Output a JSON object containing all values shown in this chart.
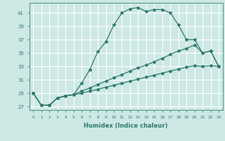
{
  "xlabel": "Humidex (Indice chaleur)",
  "x_ticks": [
    0,
    1,
    2,
    3,
    4,
    5,
    6,
    7,
    8,
    9,
    10,
    11,
    12,
    13,
    14,
    15,
    16,
    17,
    18,
    19,
    20,
    21,
    22,
    23
  ],
  "y_ticks": [
    27,
    29,
    31,
    33,
    35,
    37,
    39,
    41
  ],
  "xlim": [
    -0.5,
    23.5
  ],
  "ylim": [
    26.5,
    42.5
  ],
  "background_color": "#cde8e5",
  "grid_color": "#ffffff",
  "line_color": "#2e7b6e",
  "lines": [
    {
      "x": [
        0,
        1,
        2,
        3,
        4,
        5,
        6,
        7,
        8,
        9,
        10,
        11,
        12,
        13,
        14,
        15,
        16,
        17,
        18,
        19,
        20,
        21,
        22,
        23
      ],
      "y": [
        29.0,
        27.2,
        27.2,
        28.3,
        28.6,
        28.8,
        30.5,
        32.5,
        35.2,
        36.7,
        39.2,
        41.0,
        41.6,
        41.8,
        41.2,
        41.5,
        41.5,
        41.0,
        39.2,
        37.0,
        37.0,
        35.0,
        35.3,
        33.0
      ]
    },
    {
      "x": [
        0,
        1,
        2,
        3,
        4,
        5,
        6,
        7,
        8,
        9,
        10,
        11,
        12,
        13,
        14,
        15,
        16,
        17,
        18,
        19,
        20,
        21,
        22,
        23
      ],
      "y": [
        29.0,
        27.2,
        27.2,
        28.3,
        28.6,
        28.8,
        29.3,
        29.8,
        30.3,
        30.8,
        31.3,
        31.8,
        32.3,
        32.8,
        33.2,
        33.7,
        34.2,
        34.8,
        35.3,
        35.7,
        36.2,
        35.0,
        35.3,
        33.0
      ]
    },
    {
      "x": [
        0,
        1,
        2,
        3,
        4,
        5,
        6,
        7,
        8,
        9,
        10,
        11,
        12,
        13,
        14,
        15,
        16,
        17,
        18,
        19,
        20,
        21,
        22,
        23
      ],
      "y": [
        29.0,
        27.2,
        27.2,
        28.3,
        28.6,
        28.8,
        29.0,
        29.3,
        29.6,
        29.9,
        30.2,
        30.5,
        30.8,
        31.1,
        31.4,
        31.7,
        32.0,
        32.3,
        32.6,
        32.9,
        33.1,
        33.0,
        33.1,
        33.0
      ]
    }
  ]
}
